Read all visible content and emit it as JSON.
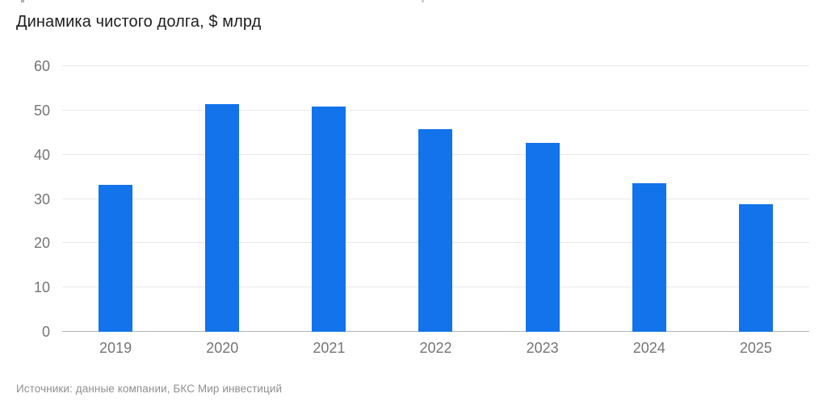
{
  "chart_data": {
    "type": "bar",
    "title": "Динамика чистого долга, $ млрд",
    "categories": [
      "2019",
      "2020",
      "2021",
      "2022",
      "2023",
      "2024",
      "2025"
    ],
    "values": [
      33.2,
      51.5,
      50.8,
      45.8,
      42.7,
      33.6,
      28.9
    ],
    "ylim": [
      0,
      60
    ],
    "yticks": [
      0,
      10,
      20,
      30,
      40,
      50,
      60
    ],
    "xlabel": "",
    "ylabel": "",
    "grid": true,
    "legend_position": "none",
    "bar_color": "#1273EB",
    "colors": {
      "title": "#1E1E1E",
      "tick_label": "#757575",
      "gridline": "#E9E9E9",
      "baseline": "#B3B3B3",
      "source": "#8F8F8F"
    },
    "source_note": "Источники: данные компании, БКС Мир инвестиций"
  }
}
